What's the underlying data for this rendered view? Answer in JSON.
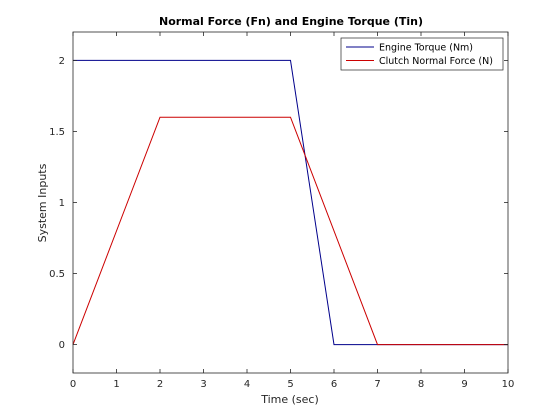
{
  "chart_data": {
    "type": "line",
    "title": "Normal Force (Fn) and Engine Torque (Tin)",
    "xlabel": "Time (sec)",
    "ylabel": "System Inputs",
    "xlim": [
      0,
      10
    ],
    "ylim": [
      -0.2,
      2.2
    ],
    "xticks": [
      "0",
      "1",
      "2",
      "3",
      "4",
      "5",
      "6",
      "7",
      "8",
      "9",
      "10"
    ],
    "yticks": [
      "0",
      "0.5",
      "1",
      "1.5",
      "2"
    ],
    "grid": false,
    "legend_position": "top-right",
    "series": [
      {
        "name": "Engine Torque (Nm)",
        "color": "#00008b",
        "x": [
          0,
          5,
          6,
          10
        ],
        "y": [
          2,
          2,
          0,
          0
        ]
      },
      {
        "name": "Clutch Normal Force (N)",
        "color": "#cc0000",
        "x": [
          0,
          2,
          5,
          7,
          10
        ],
        "y": [
          0,
          1.6,
          1.6,
          0,
          0
        ]
      }
    ]
  }
}
